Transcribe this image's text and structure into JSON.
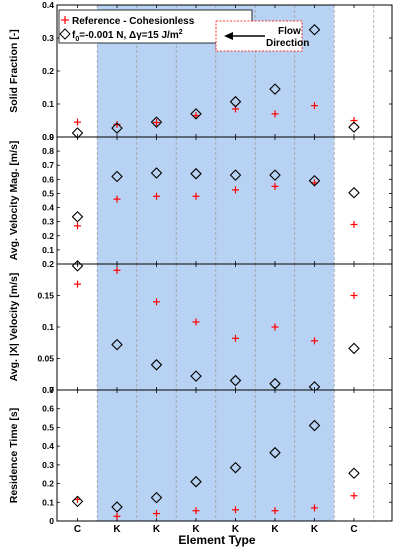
{
  "colors": {
    "shade": "#b7d2f2",
    "reference": "#ff0000",
    "cohesive": "#000000",
    "axis": "#000000",
    "dash": "#a0a0a0",
    "flow_box": "#ff0000"
  },
  "chart_data": {
    "type": "scatter",
    "categories": [
      "C",
      "K",
      "K",
      "K",
      "K",
      "K",
      "K",
      "C"
    ],
    "xlabel": "Element Type",
    "shaded_region": {
      "from_index": 1,
      "to_index": 6
    },
    "legend": {
      "placement": "top-left",
      "items": [
        {
          "marker": "plus",
          "label": "Reference - Cohesionless",
          "label_parts": null
        },
        {
          "marker": "diamond",
          "label": "",
          "label_parts": [
            "f",
            "0",
            "=-0.001 N, Δγ=15 J/m",
            "2"
          ]
        }
      ]
    },
    "annotation": {
      "line1": "Flow",
      "line2": "Direction",
      "arrow": "left",
      "placement": "top-right of top panel"
    },
    "panels": [
      {
        "ylabel": "Solid Fraction [-]",
        "ylim": [
          0,
          0.4
        ],
        "yticks": [
          0,
          0.1,
          0.2,
          0.3,
          0.4
        ],
        "ytick_labels": [
          "0",
          "0.1",
          "0.2",
          "0.3",
          "0.4"
        ],
        "series": [
          {
            "name": "Reference - Cohesionless",
            "marker": "plus",
            "values": [
              0.045,
              0.038,
              0.044,
              0.065,
              0.085,
              0.07,
              0.095,
              0.05
            ]
          },
          {
            "name": "f0=-0.001 N, Δγ=15 J/m2",
            "marker": "diamond",
            "values": [
              0.012,
              0.027,
              0.045,
              0.07,
              0.107,
              0.145,
              0.325,
              0.03
            ]
          }
        ]
      },
      {
        "ylabel": "Avg. Velocity Mag. [m/s]",
        "ylim": [
          0,
          0.9
        ],
        "yticks": [
          0.1,
          0.2,
          0.3,
          0.4,
          0.5,
          0.6,
          0.7,
          0.8,
          0.9
        ],
        "ytick_labels": [
          "0.1",
          "0.2",
          "0.3",
          "0.4",
          "0.5",
          "0.6",
          "0.7",
          "0.8",
          "0.9"
        ],
        "series": [
          {
            "name": "Reference - Cohesionless",
            "marker": "plus",
            "values": [
              0.27,
              0.46,
              0.48,
              0.48,
              0.525,
              0.55,
              0.575,
              0.28
            ]
          },
          {
            "name": "f0=-0.001 N, Δγ=15 J/m2",
            "marker": "diamond",
            "values": [
              0.335,
              0.62,
              0.645,
              0.64,
              0.63,
              0.63,
              0.59,
              0.505
            ]
          }
        ]
      },
      {
        "ylabel": "Avg. |X| Velocity [m/s]",
        "ylim": [
          0,
          0.2
        ],
        "yticks": [
          0,
          0.05,
          0.1,
          0.15,
          0.2
        ],
        "ytick_labels": [
          "0",
          "0.05",
          "0.1",
          "0.15",
          "0.2"
        ],
        "series": [
          {
            "name": "Reference - Cohesionless",
            "marker": "plus",
            "values": [
              0.168,
              0.19,
              0.14,
              0.108,
              0.082,
              0.1,
              0.078,
              0.15
            ]
          },
          {
            "name": "f0=-0.001 N, Δγ=15 J/m2",
            "marker": "diamond",
            "values": [
              0.197,
              0.072,
              0.04,
              0.022,
              0.015,
              0.01,
              0.005,
              0.066
            ]
          }
        ]
      },
      {
        "ylabel": "Residence Time [s]",
        "ylim": [
          0,
          0.7
        ],
        "yticks": [
          0,
          0.1,
          0.2,
          0.3,
          0.4,
          0.5,
          0.6,
          0.7
        ],
        "ytick_labels": [
          "0",
          "0.1",
          "0.2",
          "0.3",
          "0.4",
          "0.5",
          "0.6",
          "0.7"
        ],
        "series": [
          {
            "name": "Reference - Cohesionless",
            "marker": "plus",
            "values": [
              0.115,
              0.025,
              0.04,
              0.055,
              0.06,
              0.055,
              0.07,
              0.135
            ]
          },
          {
            "name": "f0=-0.001 N, Δγ=15 J/m2",
            "marker": "diamond",
            "values": [
              0.105,
              0.075,
              0.125,
              0.21,
              0.285,
              0.365,
              0.51,
              0.255
            ]
          }
        ]
      }
    ]
  }
}
